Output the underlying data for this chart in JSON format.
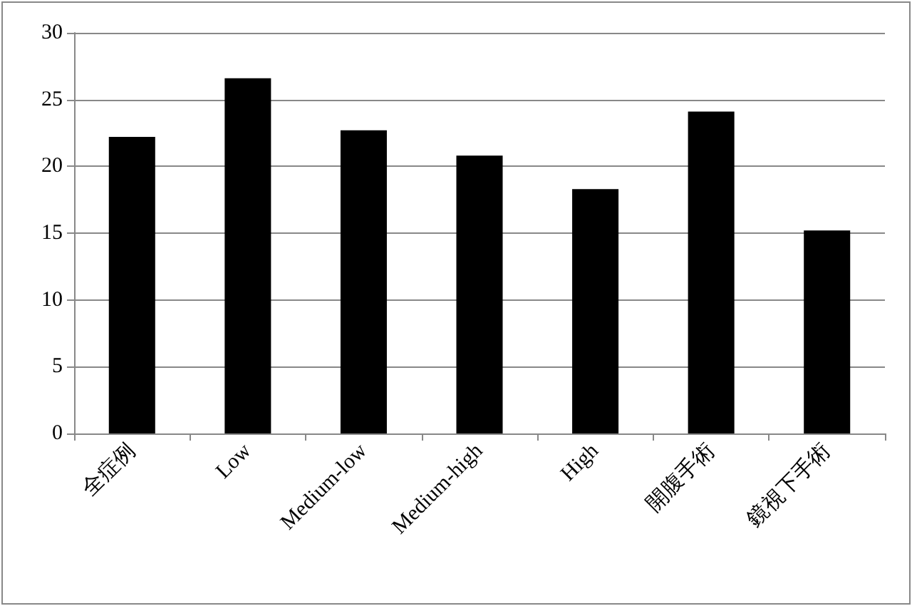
{
  "chart_data": {
    "type": "bar",
    "categories": [
      "全症例",
      "Low",
      "Medium-low",
      "Medium-high",
      "High",
      "開腹手術",
      "鏡視下手術"
    ],
    "values": [
      22.2,
      26.6,
      22.7,
      20.8,
      18.3,
      24.1,
      15.2
    ],
    "color": "#000000",
    "ylim": [
      0,
      30
    ],
    "yticks": [
      0,
      5,
      10,
      15,
      20,
      25,
      30
    ],
    "grid": "y"
  }
}
